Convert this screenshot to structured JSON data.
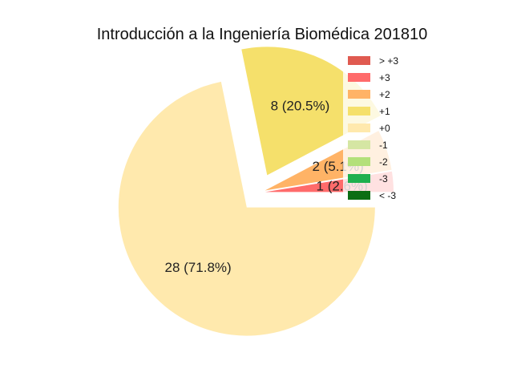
{
  "chart_data": {
    "type": "pie",
    "title": "Introducción a la Ingeniería Biomédica 201810",
    "slices": [
      {
        "label": "+3",
        "value": 1,
        "display": "1 (2.6%)",
        "color": "#ff6b6b"
      },
      {
        "label": "+2",
        "value": 2,
        "display": "2 (5.1%)",
        "color": "#ffb366"
      },
      {
        "label": "+1",
        "value": 8,
        "display": "8 (20.5%)",
        "color": "#f5e06b"
      },
      {
        "label": "+0",
        "value": 28,
        "display": "28 (71.8%)",
        "color": "#ffe9ad"
      }
    ],
    "legend": {
      "placement": "top-right",
      "entries": [
        {
          "label": "> +3",
          "color": "#e05a50"
        },
        {
          "label": "+3",
          "color": "#ff6b6b"
        },
        {
          "label": "+2",
          "color": "#ffb366"
        },
        {
          "label": "+1",
          "color": "#f5e06b"
        },
        {
          "label": "+0",
          "color": "#ffe9ad"
        },
        {
          "label": "-1",
          "color": "#d5e6a3"
        },
        {
          "label": "-2",
          "color": "#b3e07a"
        },
        {
          "label": "-3",
          "color": "#1fb04e"
        },
        {
          "label": "< -3",
          "color": "#0b6e14"
        }
      ]
    }
  }
}
